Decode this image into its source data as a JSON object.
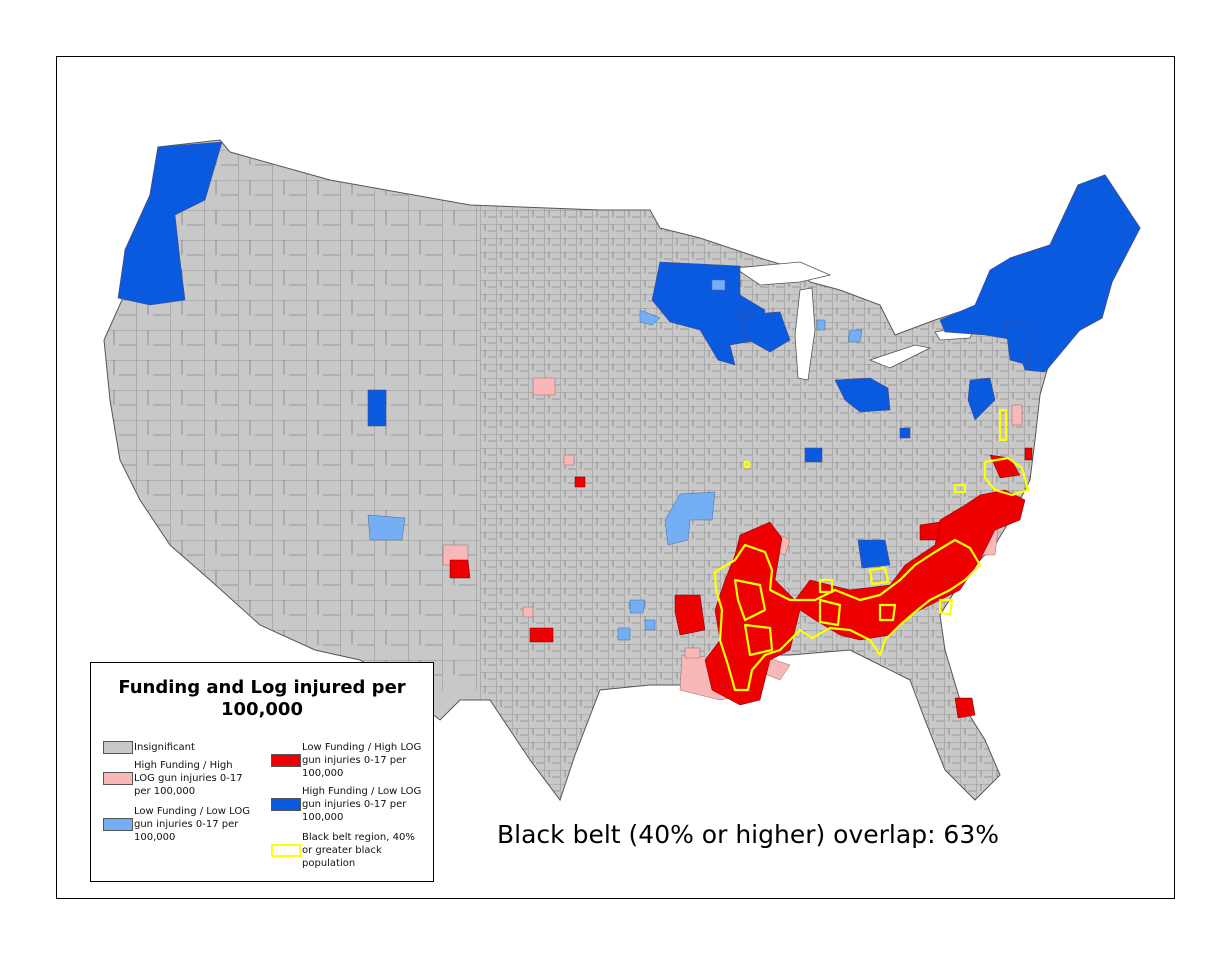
{
  "legend": {
    "title": "Funding and Log injured per 100,000",
    "items": [
      {
        "key": "insignificant",
        "label": "Insignificant",
        "color": "#c8c8c8"
      },
      {
        "key": "high_high",
        "label": "High Funding / High LOG gun injuries 0-17 per 100,000",
        "color": "#f8b8b8"
      },
      {
        "key": "low_low",
        "label": "Low Funding / Low LOG gun injuries 0-17 per 100,000",
        "color": "#74aef5"
      },
      {
        "key": "low_high",
        "label": "Low Funding / High LOG gun injuries 0-17 per 100,000",
        "color": "#ee0000"
      },
      {
        "key": "high_low",
        "label": "High Funding  / Low LOG gun injuries 0-17 per 100,000",
        "color": "#0a5ae0"
      },
      {
        "key": "black_belt",
        "label": "Black belt region, 40% or greater black population",
        "color": "#ffff00"
      }
    ]
  },
  "annotation": "Black belt (40% or higher) overlap: 63%",
  "colors": {
    "land": "#c8c8c8",
    "county_lines": "#6a6a6a",
    "high_low": "#0a5ae0",
    "low_high": "#ee0000",
    "high_high": "#f8b8b8",
    "low_low": "#74aef5",
    "black_belt": "#ffff00"
  }
}
